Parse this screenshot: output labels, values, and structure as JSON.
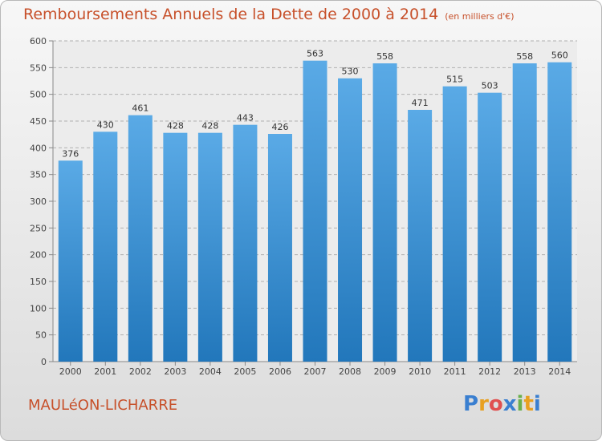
{
  "header": {
    "title": "Remboursements Annuels de la Dette de 2000 à 2014",
    "unit": "(en milliers d'€)"
  },
  "footer": {
    "place": "MAULéON-LICHARRE",
    "logo_letters": [
      "P",
      "r",
      "o",
      "x",
      "i",
      "t",
      "i"
    ],
    "logo_colors": [
      "#3a7fd0",
      "#e8a020",
      "#e05050",
      "#3a7fd0",
      "#6ab04c",
      "#e8a020",
      "#3a7fd0"
    ]
  },
  "colors": {
    "bar_top": "#5aaae6",
    "bar_bottom": "#2277bb",
    "accent": "#c7502a"
  },
  "chart_data": {
    "type": "bar",
    "categories": [
      "2000",
      "2001",
      "2002",
      "2003",
      "2004",
      "2005",
      "2006",
      "2007",
      "2008",
      "2009",
      "2010",
      "2011",
      "2012",
      "2013",
      "2014"
    ],
    "values": [
      376,
      430,
      461,
      428,
      428,
      443,
      426,
      563,
      530,
      558,
      471,
      515,
      503,
      558,
      560
    ],
    "ylim": [
      0,
      600
    ],
    "yticks": [
      0,
      50,
      100,
      150,
      200,
      250,
      300,
      350,
      400,
      450,
      500,
      550,
      600
    ],
    "grid": true,
    "legend": "none"
  }
}
